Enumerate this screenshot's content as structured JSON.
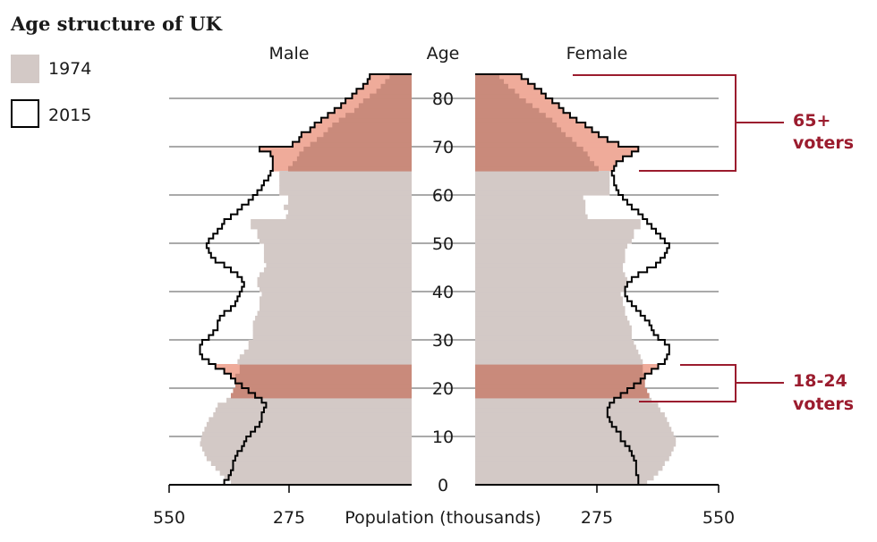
{
  "chart_data": {
    "type": "bar",
    "title": "Age structure of UK",
    "left_label": "Male",
    "right_label": "Female",
    "age_label": "Age",
    "xlabel": "Population (thousands)",
    "x_ticks": [
      "550",
      "275",
      "275",
      "550"
    ],
    "y_ticks": [
      "0",
      "10",
      "20",
      "30",
      "40",
      "50",
      "60",
      "70",
      "80"
    ],
    "xlim": [
      0,
      550
    ],
    "ylim": [
      0,
      85
    ],
    "legend": [
      {
        "name": "1974",
        "color": "#d3c9c6",
        "style": "fill"
      },
      {
        "name": "2015",
        "color": "#000000",
        "style": "outline"
      }
    ],
    "annotations": [
      {
        "line1": "65+",
        "line2": "voters",
        "age_range": [
          65,
          85
        ]
      },
      {
        "line1": "18-24",
        "line2": "voters",
        "age_range": [
          18,
          24
        ]
      }
    ],
    "colors": {
      "base_1974": "#d3c9c6",
      "highlight_1974": "#c98a7b",
      "highlight_2015": "#efab9a",
      "accent": "#9b1c2e",
      "grid": "#555555"
    },
    "ages": [
      0,
      1,
      2,
      3,
      4,
      5,
      6,
      7,
      8,
      9,
      10,
      11,
      12,
      13,
      14,
      15,
      16,
      17,
      18,
      19,
      20,
      21,
      22,
      23,
      24,
      25,
      26,
      27,
      28,
      29,
      30,
      31,
      32,
      33,
      34,
      35,
      36,
      37,
      38,
      39,
      40,
      41,
      42,
      43,
      44,
      45,
      46,
      47,
      48,
      49,
      50,
      51,
      52,
      53,
      54,
      55,
      56,
      57,
      58,
      59,
      60,
      61,
      62,
      63,
      64,
      65,
      66,
      67,
      68,
      69,
      70,
      71,
      72,
      73,
      74,
      75,
      76,
      77,
      78,
      79,
      80,
      81,
      82,
      83,
      84
    ],
    "series": [
      {
        "name": "1974",
        "group": "Male",
        "values": [
          410,
          425,
          435,
          445,
          455,
          465,
          470,
          475,
          480,
          478,
          475,
          470,
          465,
          460,
          450,
          445,
          440,
          420,
          410,
          405,
          400,
          400,
          400,
          390,
          390,
          395,
          390,
          380,
          370,
          370,
          360,
          360,
          360,
          360,
          355,
          350,
          345,
          345,
          345,
          340,
          345,
          350,
          350,
          345,
          335,
          330,
          335,
          335,
          335,
          335,
          345,
          350,
          350,
          365,
          365,
          285,
          280,
          290,
          280,
          280,
          300,
          300,
          300,
          300,
          300,
          280,
          270,
          260,
          255,
          245,
          230,
          215,
          200,
          190,
          180,
          165,
          150,
          130,
          120,
          110,
          95,
          80,
          70,
          60,
          50
        ]
      },
      {
        "name": "2015",
        "group": "Male",
        "values": [
          425,
          415,
          410,
          405,
          405,
          400,
          395,
          385,
          380,
          375,
          365,
          355,
          345,
          340,
          340,
          335,
          330,
          340,
          355,
          370,
          385,
          400,
          410,
          425,
          445,
          460,
          475,
          480,
          480,
          475,
          460,
          450,
          440,
          440,
          435,
          425,
          410,
          400,
          395,
          390,
          385,
          380,
          385,
          395,
          410,
          425,
          445,
          455,
          460,
          465,
          460,
          450,
          440,
          430,
          425,
          410,
          395,
          385,
          370,
          360,
          350,
          340,
          335,
          325,
          320,
          315,
          315,
          315,
          320,
          345,
          270,
          255,
          250,
          230,
          220,
          205,
          190,
          175,
          160,
          150,
          135,
          125,
          110,
          100,
          95
        ]
      },
      {
        "name": "1974",
        "group": "Female",
        "values": [
          390,
          405,
          415,
          425,
          430,
          440,
          445,
          450,
          455,
          455,
          450,
          445,
          440,
          435,
          430,
          420,
          415,
          400,
          395,
          390,
          385,
          385,
          385,
          380,
          380,
          380,
          375,
          370,
          365,
          360,
          355,
          355,
          355,
          350,
          345,
          340,
          340,
          335,
          335,
          330,
          340,
          345,
          345,
          340,
          335,
          335,
          340,
          340,
          340,
          345,
          355,
          360,
          360,
          375,
          375,
          255,
          250,
          250,
          250,
          245,
          305,
          305,
          305,
          305,
          305,
          280,
          270,
          260,
          255,
          245,
          230,
          220,
          205,
          195,
          185,
          175,
          160,
          145,
          130,
          115,
          100,
          90,
          75,
          65,
          55
        ]
      },
      {
        "name": "2015",
        "group": "Female",
        "values": [
          370,
          370,
          365,
          365,
          365,
          360,
          355,
          350,
          340,
          330,
          330,
          320,
          310,
          305,
          300,
          300,
          305,
          315,
          330,
          345,
          360,
          375,
          385,
          400,
          415,
          430,
          435,
          440,
          440,
          430,
          415,
          405,
          400,
          395,
          385,
          375,
          365,
          355,
          345,
          340,
          340,
          345,
          355,
          370,
          390,
          410,
          420,
          430,
          435,
          440,
          430,
          420,
          410,
          400,
          390,
          380,
          370,
          355,
          345,
          335,
          325,
          320,
          315,
          315,
          310,
          315,
          320,
          335,
          355,
          370,
          325,
          300,
          280,
          265,
          250,
          230,
          215,
          200,
          190,
          175,
          160,
          150,
          135,
          120,
          105
        ]
      }
    ]
  }
}
